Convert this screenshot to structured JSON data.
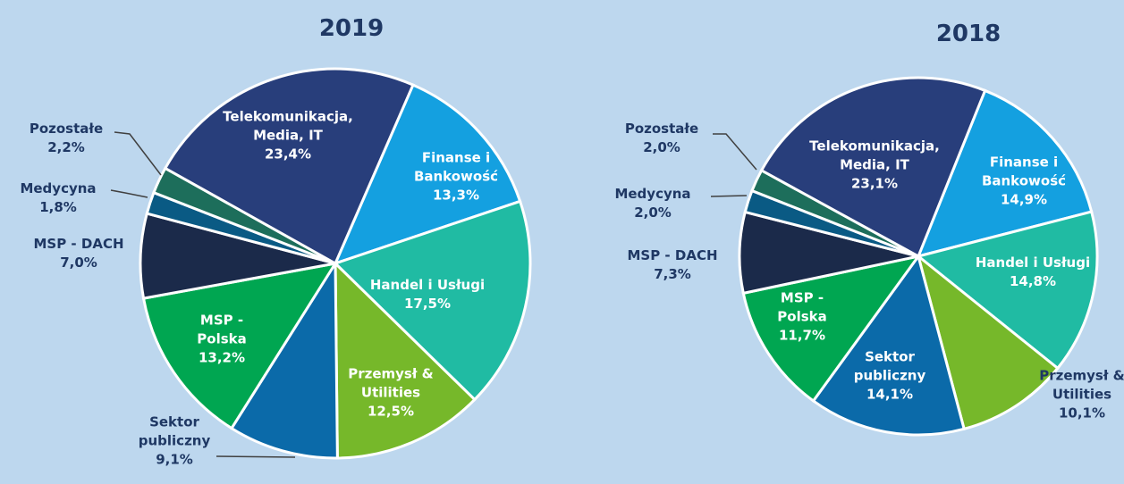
{
  "chart_data": [
    {
      "type": "pie",
      "title": "2019",
      "categories": [
        "Finanse i Bankowość",
        "Handel i Usługi",
        "Przemysł & Utilities",
        "Sektor publiczny",
        "MSP - Polska",
        "MSP - DACH",
        "Medycyna",
        "Pozostałe",
        "Telekomunikacja, Media, IT"
      ],
      "values": [
        13.3,
        17.5,
        12.5,
        9.1,
        13.2,
        7.0,
        1.8,
        2.2,
        23.4
      ],
      "value_labels": [
        "13,3%",
        "17,5%",
        "12,5%",
        "9,1%",
        "13,2%",
        "7,0%",
        "1,8%",
        "2,2%",
        "23,4%"
      ],
      "colors": [
        "#14a0e0",
        "#20bba3",
        "#76b82a",
        "#0b6aa9",
        "#00a651",
        "#1b2a4a",
        "#0a5a84",
        "#1d6e5b",
        "#283e7b"
      ]
    },
    {
      "type": "pie",
      "title": "2018",
      "categories": [
        "Finanse i Bankowość",
        "Handel i Usługi",
        "Przemysł & Utilities",
        "Sektor publiczny",
        "MSP - Polska",
        "MSP - DACH",
        "Medycyna",
        "Pozostałe",
        "Telekomunikacja, Media, IT"
      ],
      "values": [
        14.9,
        14.8,
        10.1,
        14.1,
        11.7,
        7.3,
        2.0,
        2.0,
        23.1
      ],
      "value_labels": [
        "14,9%",
        "14,8%",
        "10,1%",
        "14,1%",
        "11,7%",
        "7,3%",
        "2,0%",
        "2,0%",
        "23,1%"
      ],
      "colors": [
        "#14a0e0",
        "#20bba3",
        "#76b82a",
        "#0b6aa9",
        "#00a651",
        "#1b2a4a",
        "#0a5a84",
        "#1d6e5b",
        "#283e7b"
      ]
    }
  ]
}
